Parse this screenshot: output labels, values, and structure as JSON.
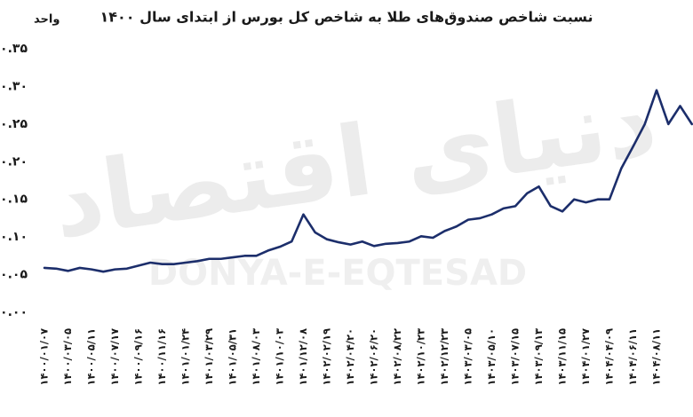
{
  "chart_data": {
    "type": "line",
    "title": "نسبت شاخص صندوق‌های طلا به شاخص کل بورس از ابتدای سال ۱۴۰۰",
    "y_label": "واحد",
    "watermark": "دنیای اقتصاد",
    "watermark_latin": "DONYA-E-EQTESAD",
    "categories": [
      "۱۴۰۰/۰۱/۰۷",
      null,
      "۱۴۰۰/۰۳/۰۵",
      null,
      "۱۴۰۰/۰۵/۱۱",
      null,
      "۱۴۰۰/۰۷/۱۷",
      null,
      "۱۴۰۰/۰۹/۱۶",
      null,
      "۱۴۰۰/۱۱/۱۶",
      null,
      "۱۴۰۱/۰۱/۲۴",
      null,
      "۱۴۰۱/۰۳/۲۹",
      null,
      "۱۴۰۱/۰۵/۳۱",
      null,
      "۱۴۰۱/۰۸/۰۳",
      null,
      "۱۴۰۱/۱۰/۰۳",
      null,
      "۱۴۰۱/۱۲/۰۸",
      null,
      "۱۴۰۲/۰۲/۱۹",
      null,
      "۱۴۰۲/۰۴/۲۰",
      null,
      "۱۴۰۲/۰۶/۲۰",
      null,
      "۱۴۰۲/۰۸/۲۲",
      null,
      "۱۴۰۲/۱۰/۲۳",
      null,
      "۱۴۰۲/۱۲/۲۳",
      null,
      "۱۴۰۳/۰۳/۰۵",
      null,
      "۱۴۰۳/۰۵/۱۰",
      null,
      "۱۴۰۳/۰۷/۱۵",
      null,
      "۱۴۰۳/۰۹/۱۳",
      null,
      "۱۴۰۳/۱۱/۱۵",
      null,
      "۱۴۰۴/۰۱/۲۷",
      null,
      "۱۴۰۴/۰۴/۰۹",
      null,
      "۱۴۰۴/۰۶/۱۱",
      null,
      "۱۴۰۴/۰۸/۱۱",
      null,
      null,
      null
    ],
    "series": [
      {
        "color": "#1c2e6b",
        "values": [
          0.059,
          0.058,
          0.055,
          0.059,
          0.057,
          0.054,
          0.057,
          0.058,
          0.062,
          0.066,
          0.064,
          0.064,
          0.066,
          0.068,
          0.071,
          0.071,
          0.073,
          0.075,
          0.075,
          0.082,
          0.087,
          0.094,
          0.13,
          0.106,
          0.097,
          0.093,
          0.09,
          0.094,
          0.088,
          0.091,
          0.092,
          0.094,
          0.101,
          0.099,
          0.108,
          0.114,
          0.123,
          0.125,
          0.13,
          0.138,
          0.141,
          0.158,
          0.167,
          0.141,
          0.134,
          0.15,
          0.146,
          0.15,
          0.15,
          0.191,
          0.22,
          0.25,
          0.295,
          0.25,
          0.274,
          0.25
        ]
      }
    ],
    "ylim": [
      0,
      0.35
    ],
    "yticks": [
      {
        "value": 0,
        "label": "۰.۰۰"
      },
      {
        "value": 0.05,
        "label": "۰.۰۵"
      },
      {
        "value": 0.1,
        "label": "۰.۱۰"
      },
      {
        "value": 0.15,
        "label": "۰.۱۵"
      },
      {
        "value": 0.2,
        "label": "۰.۲۰"
      },
      {
        "value": 0.25,
        "label": "۰.۲۵"
      },
      {
        "value": 0.3,
        "label": "۰.۳۰"
      },
      {
        "value": 0.35,
        "label": "۰.۳۵"
      }
    ],
    "grid": false
  }
}
